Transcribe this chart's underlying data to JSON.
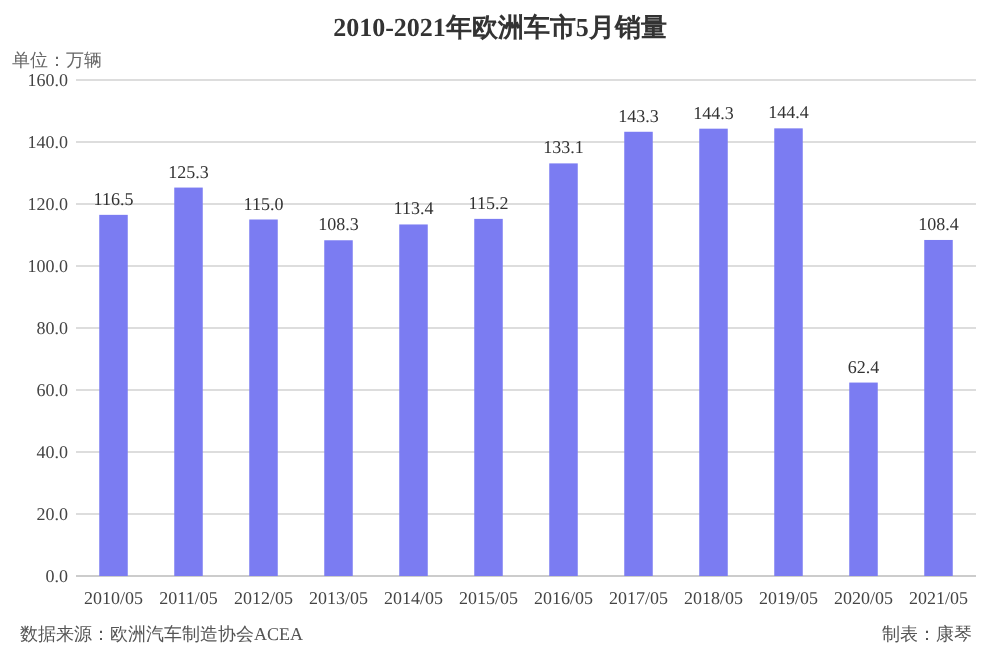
{
  "chart_data": {
    "type": "bar",
    "title": "2010-2021年欧洲车市5月销量",
    "ylabel": "单位：万辆",
    "categories": [
      "2010/05",
      "2011/05",
      "2012/05",
      "2013/05",
      "2014/05",
      "2015/05",
      "2016/05",
      "2017/05",
      "2018/05",
      "2019/05",
      "2020/05",
      "2021/05"
    ],
    "values": [
      116.5,
      125.3,
      115.0,
      108.3,
      113.4,
      115.2,
      133.1,
      143.3,
      144.3,
      144.4,
      62.4,
      108.4
    ],
    "value_labels": [
      "116.5",
      "125.3",
      "115.0",
      "108.3",
      "113.4",
      "115.2",
      "133.1",
      "143.3",
      "144.3",
      "144.4",
      "62.4",
      "108.4"
    ],
    "color": "#7b7cf2",
    "ylim": [
      0,
      160
    ],
    "yticks": [
      {
        "value": 0,
        "label": "0.0"
      },
      {
        "value": 20,
        "label": "20.0"
      },
      {
        "value": 40,
        "label": "40.0"
      },
      {
        "value": 60,
        "label": "60.0"
      },
      {
        "value": 80,
        "label": "80.0"
      },
      {
        "value": 100,
        "label": "100.0"
      },
      {
        "value": 120,
        "label": "120.0"
      },
      {
        "value": 140,
        "label": "140.0"
      },
      {
        "value": 160,
        "label": "160.0"
      }
    ],
    "grid": "y",
    "annotations": [
      "数据来源：欧洲汽车制造协会ACEA",
      "制表：康琴"
    ]
  }
}
